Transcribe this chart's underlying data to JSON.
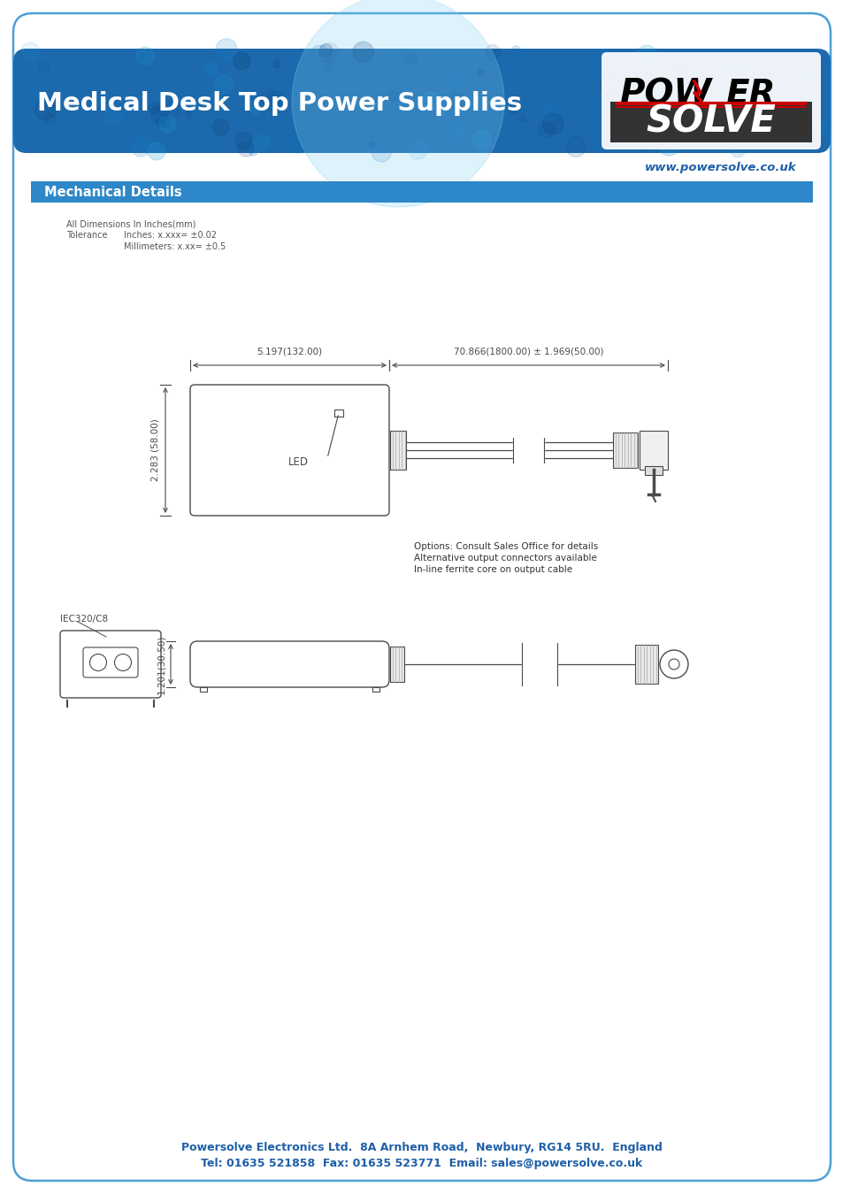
{
  "title": "Medical Desk Top Power Supplies",
  "website": "www.powersolve.co.uk",
  "section_title": "Mechanical Details",
  "dim_note_line1": "All Dimensions In Inches(mm)",
  "dim_note_line2_a": "Tolerance",
  "dim_note_line2_b": "Inches: x.xxx= ±0.02",
  "dim_note_line3": "Millimeters: x.xx= ±0.5",
  "top_dim_left": "5.197(132.00)",
  "top_dim_right": "70.866(1800.00) ± 1.969(50.00)",
  "left_dim": "2.283 (58.00)",
  "side_dim": "1.201(30.50)",
  "iec_label": "IEC320/C8",
  "led_label": "LED",
  "options_line1": "Options: Consult Sales Office for details",
  "options_line2": "Alternative output connectors available",
  "options_line3": "In-line ferrite core on output cable",
  "footer_line1": "Powersolve Electronics Ltd.  8A Arnhem Road,  Newbury, RG14 5RU.  England",
  "footer_line2": "Tel: 01635 521858  Fax: 01635 523771  Email: sales@powersolve.co.uk",
  "header_bg_color": "#1c6aad",
  "section_bg_color": "#2e87c8",
  "border_color": "#4d9fd6",
  "footer_text_color": "#1e5fa8",
  "website_color": "#1e5fa8",
  "drawing_color": "#4a4a4a",
  "dim_color": "#4a4a4a",
  "logo_power_color": "#111111",
  "logo_solve_bg": "#333333",
  "logo_red": "#cc0000"
}
